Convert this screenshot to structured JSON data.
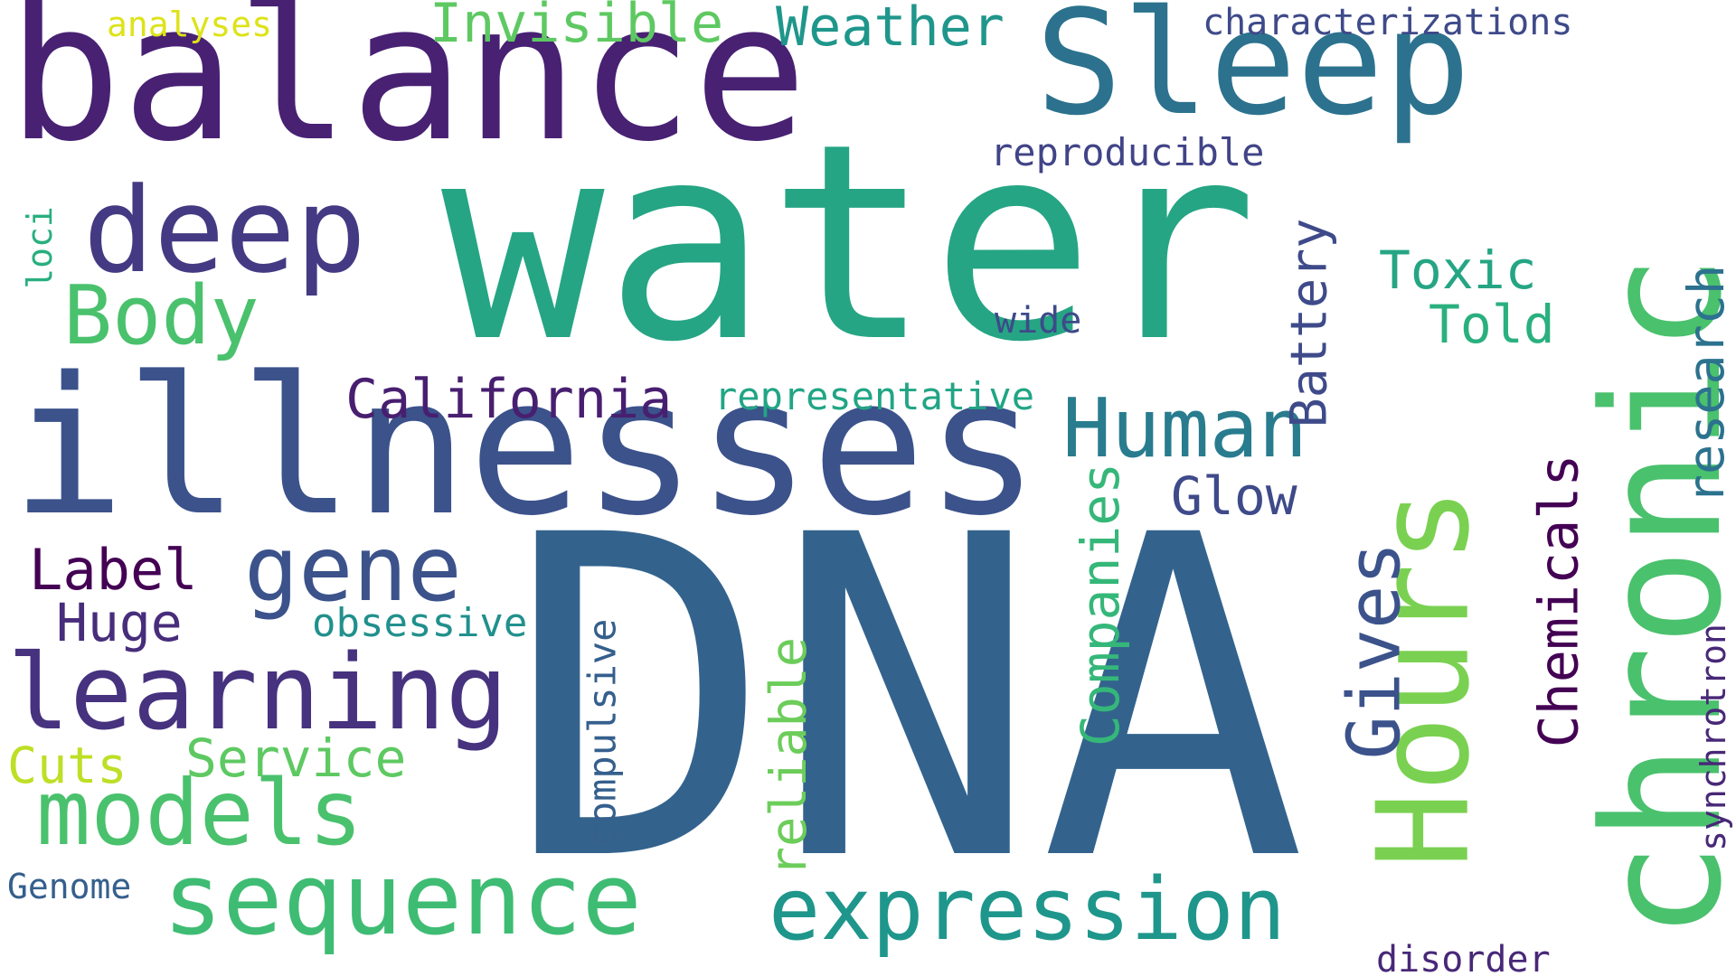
{
  "words": [
    {
      "text": "balance",
      "color": "#482173"
    },
    {
      "text": "water",
      "color": "#25a584"
    },
    {
      "text": "DNA",
      "color": "#33638d"
    },
    {
      "text": "illnesses",
      "color": "#3b528b"
    },
    {
      "text": "chronic",
      "color": "#4ac16d"
    },
    {
      "text": "Hours",
      "color": "#7ad151"
    },
    {
      "text": "Sleep",
      "color": "#2c728e"
    },
    {
      "text": "deep",
      "color": "#443a83"
    },
    {
      "text": "sequence",
      "color": "#3fbc73"
    },
    {
      "text": "learning",
      "color": "#46327e"
    },
    {
      "text": "expression",
      "color": "#1f968b"
    },
    {
      "text": "gene",
      "color": "#3b528b"
    },
    {
      "text": "models",
      "color": "#4ac16d"
    },
    {
      "text": "Human",
      "color": "#287c8e"
    },
    {
      "text": "Body",
      "color": "#4ac16d"
    },
    {
      "text": "Gives",
      "color": "#3b528b"
    },
    {
      "text": "Invisible",
      "color": "#5ec962"
    },
    {
      "text": "Weather",
      "color": "#1f968b"
    },
    {
      "text": "California",
      "color": "#481f70"
    },
    {
      "text": "Companies",
      "color": "#35b779"
    },
    {
      "text": "Chemicals",
      "color": "#440154"
    },
    {
      "text": "research",
      "color": "#2c728e"
    },
    {
      "text": "Battery",
      "color": "#3e4a89"
    },
    {
      "text": "Toxic",
      "color": "#25a584"
    },
    {
      "text": "Told",
      "color": "#2ab07f"
    },
    {
      "text": "Glow",
      "color": "#3e4a89"
    },
    {
      "text": "Label",
      "color": "#440154"
    },
    {
      "text": "Huge",
      "color": "#472d7b"
    },
    {
      "text": "Service",
      "color": "#5ec962"
    },
    {
      "text": "Cuts",
      "color": "#bddf26"
    },
    {
      "text": "reliable",
      "color": "#6ccd5a"
    },
    {
      "text": "compulsive",
      "color": "#355f8d"
    },
    {
      "text": "obsessive",
      "color": "#21908d"
    },
    {
      "text": "representative",
      "color": "#21a585"
    },
    {
      "text": "reproducible",
      "color": "#414487"
    },
    {
      "text": "wide",
      "color": "#3e4a89"
    },
    {
      "text": "characterizations",
      "color": "#3e4a89"
    },
    {
      "text": "analyses",
      "color": "#dde318"
    },
    {
      "text": "loci",
      "color": "#29af7f"
    },
    {
      "text": "synchrotron",
      "color": "#482878"
    },
    {
      "text": "Genome",
      "color": "#355f8d"
    },
    {
      "text": "disorder",
      "color": "#482878"
    }
  ]
}
